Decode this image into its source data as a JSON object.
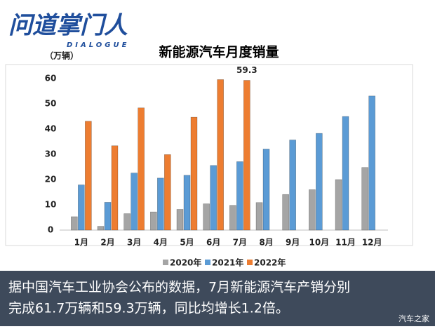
{
  "logo": {
    "title": "问道掌门人",
    "subtitle": "DIALOGUE"
  },
  "chart_data": {
    "type": "bar",
    "title": "新能源汽车月度销量",
    "y_label": "（万辆）",
    "categories": [
      "1月",
      "2月",
      "3月",
      "4月",
      "5月",
      "6月",
      "7月",
      "8月",
      "9月",
      "10月",
      "11月",
      "12月"
    ],
    "series": [
      {
        "name": "2020年",
        "color": "#a5a5a5",
        "values": [
          5.3,
          1.5,
          6.5,
          7.2,
          8.2,
          10.4,
          9.8,
          10.9,
          14.1,
          16.0,
          20.0,
          24.8
        ]
      },
      {
        "name": "2021年",
        "color": "#5b9bd5",
        "values": [
          17.9,
          11.0,
          22.6,
          20.6,
          21.7,
          25.6,
          27.1,
          32.1,
          35.7,
          38.3,
          45.0,
          53.1
        ]
      },
      {
        "name": "2022年",
        "color": "#ed7d31",
        "values": [
          43.1,
          33.4,
          48.4,
          29.9,
          44.7,
          59.6,
          59.3,
          null,
          null,
          null,
          null,
          null
        ],
        "value_labels": [
          null,
          null,
          null,
          null,
          null,
          null,
          "59.3",
          null,
          null,
          null,
          null,
          null
        ]
      }
    ],
    "ylim": [
      0,
      60
    ],
    "yticks": [
      0,
      10,
      20,
      30,
      40,
      50,
      60
    ],
    "grid": false,
    "legend": "bottom"
  },
  "caption": {
    "lines": [
      "据中国汽车工业协会公布的数据，7月新能源汽车产销分别",
      "完成61.7万辆和59.3万辆，同比均增长1.2倍。"
    ],
    "watermark": "汽车之家"
  }
}
